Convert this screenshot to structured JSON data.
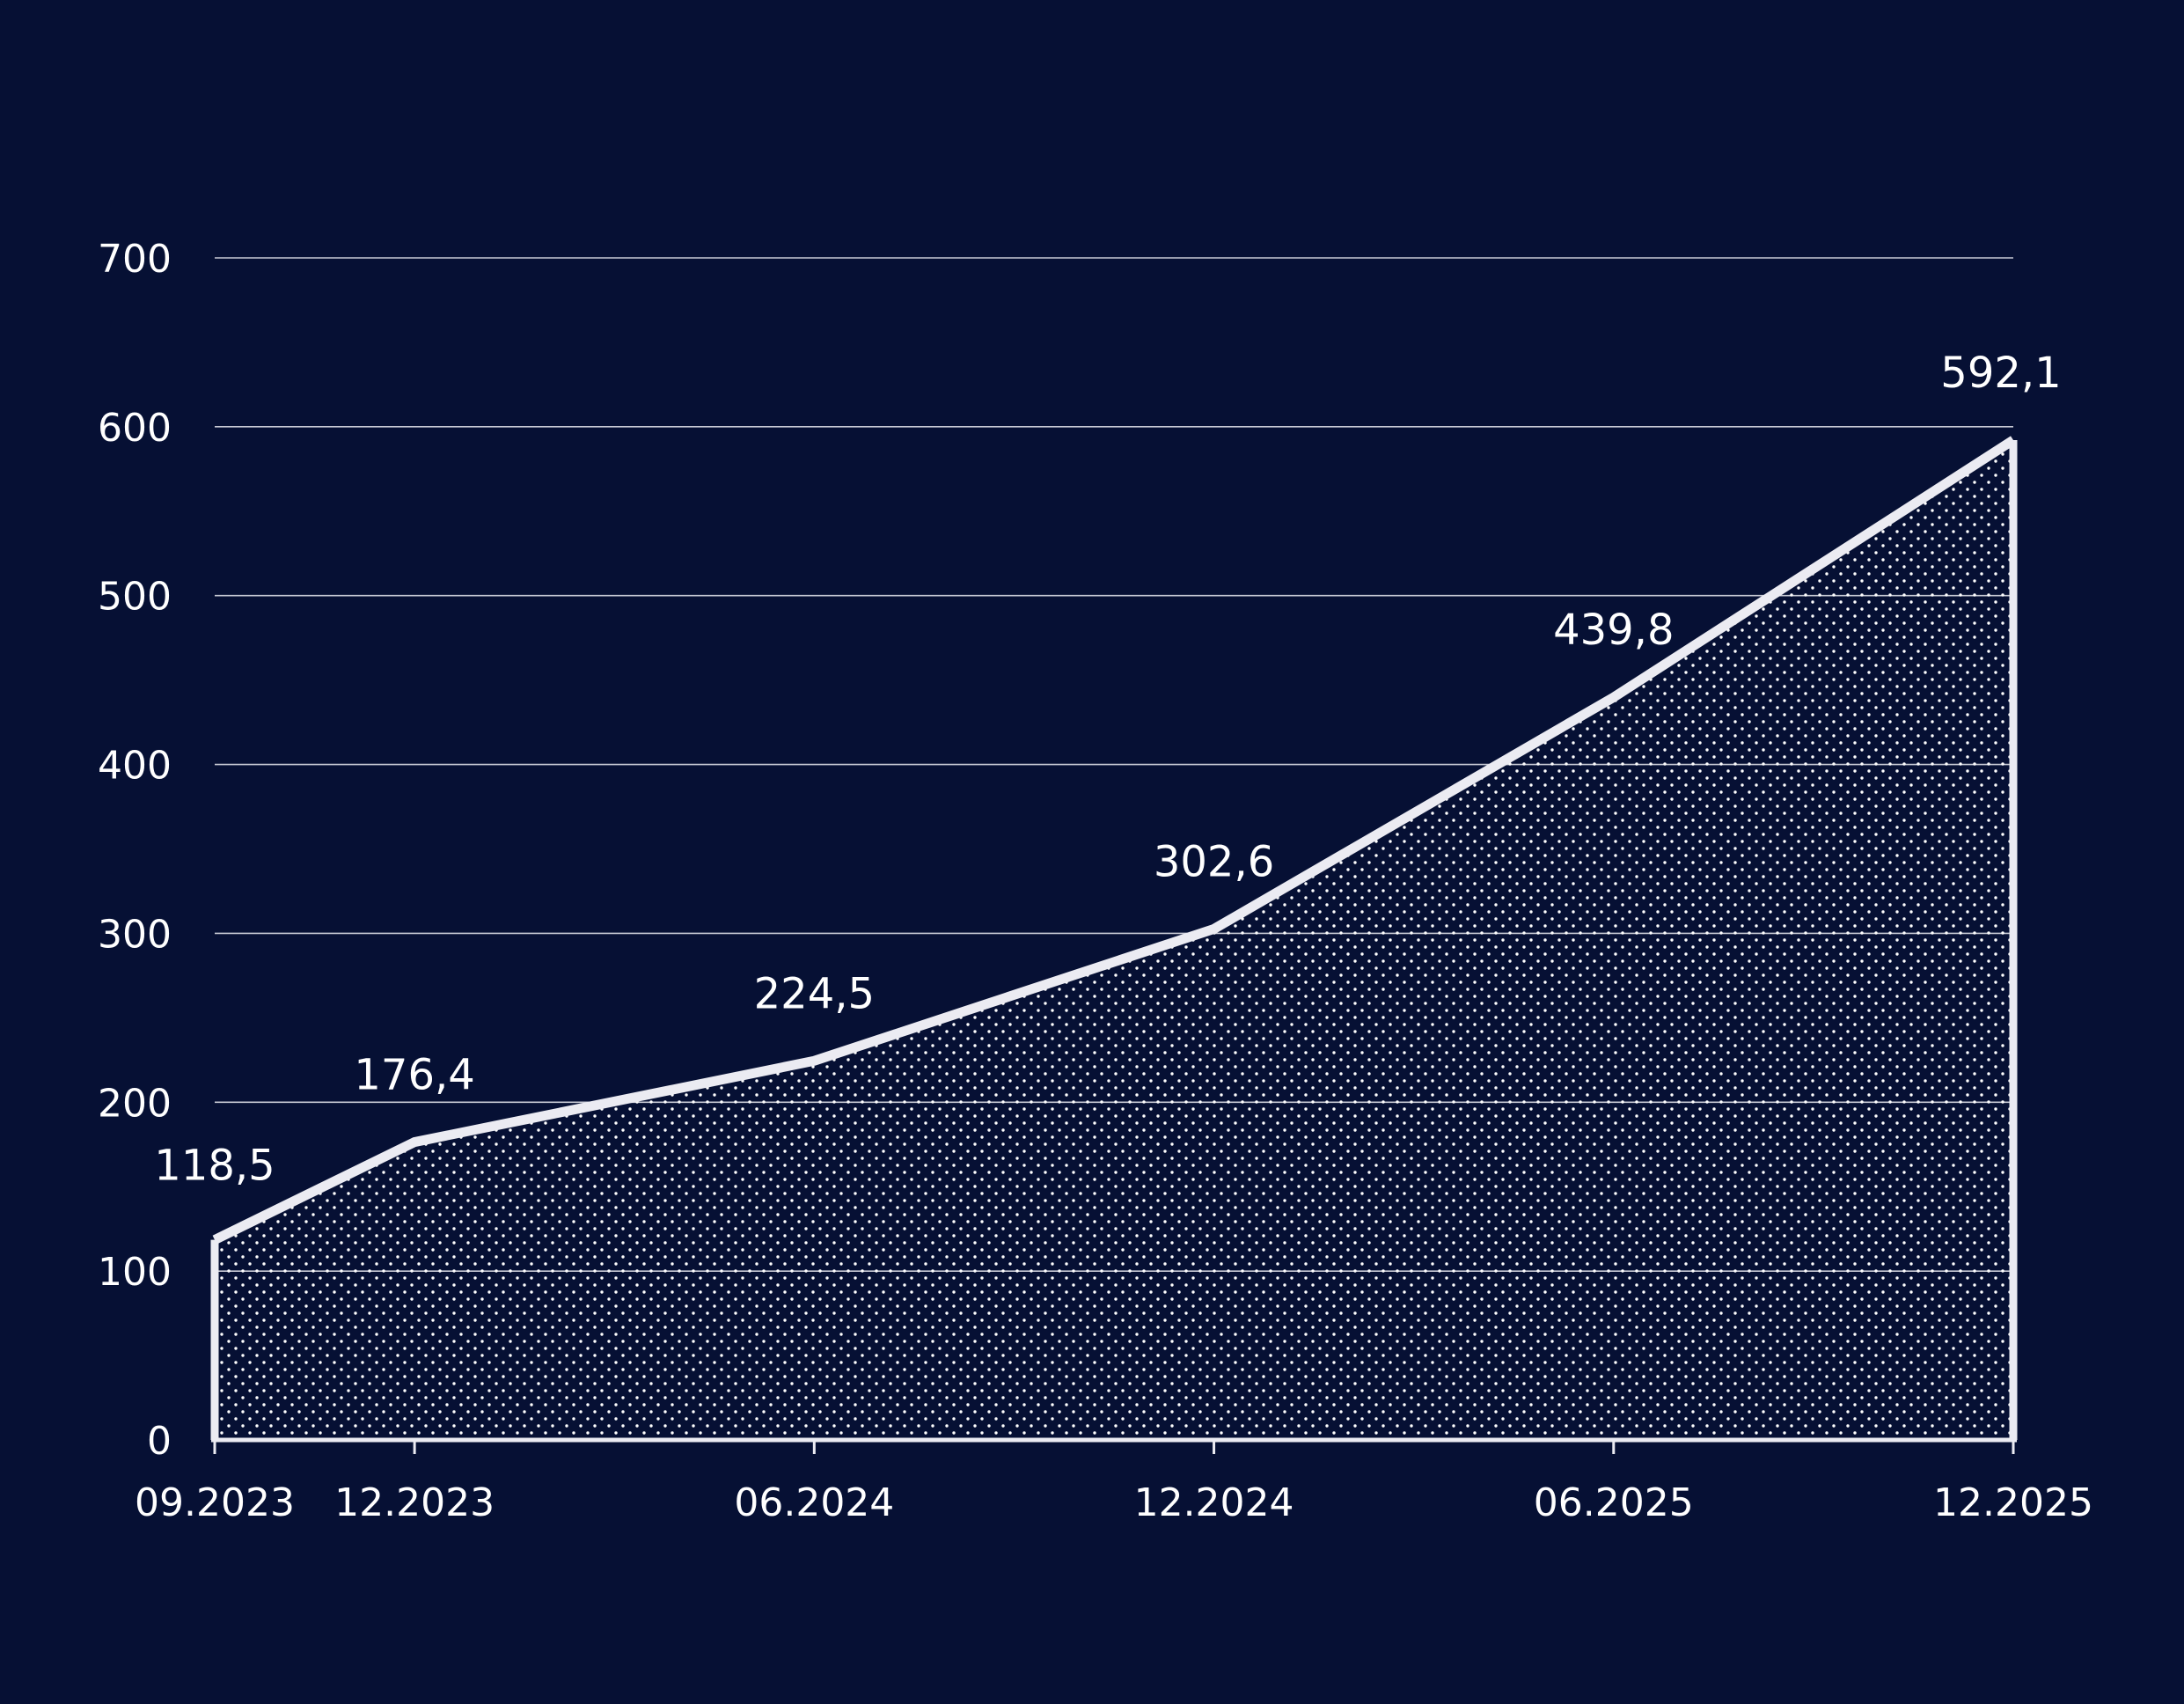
{
  "colors": {
    "background": "#061034",
    "line": "#ebebf2",
    "gridline": "#c9cbd6",
    "dots": "#ffffff",
    "text": "#ffffff"
  },
  "chart_data": {
    "type": "area",
    "x": [
      "09.2023",
      "12.2023",
      "06.2024",
      "12.2024",
      "06.2025",
      "12.2025"
    ],
    "series": [
      {
        "values": [
          118.5,
          176.4,
          224.5,
          302.6,
          439.8,
          592.1
        ],
        "labels": [
          "118,5",
          "176,4",
          "224,5",
          "302,6",
          "439,8",
          "592,1"
        ]
      }
    ],
    "y_ticks": [
      "0",
      "100",
      "200",
      "300",
      "400",
      "500",
      "600",
      "700"
    ],
    "ylim": [
      0,
      700
    ],
    "grid": true,
    "fill": "dotted"
  }
}
